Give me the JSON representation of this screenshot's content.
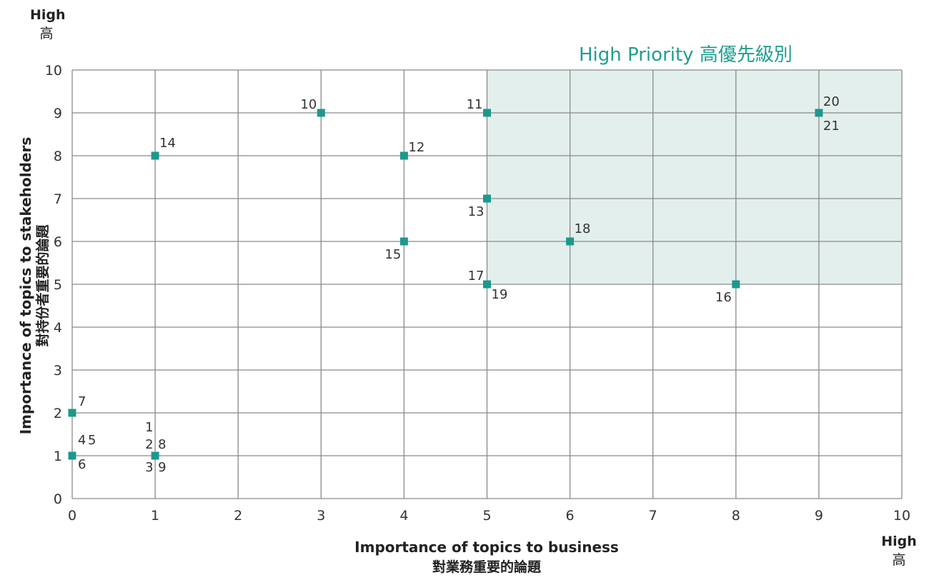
{
  "corner_labels": {
    "y_high_en": "High",
    "y_high_zh": "高",
    "x_high_en": "High",
    "x_high_zh": "高"
  },
  "priority_region_label": "High Priority 高優先級別",
  "colors": {
    "marker": "#1b998b",
    "priority_fill": "#e2efed",
    "grid": "#8a8a8a",
    "priority_text": "#1f9e8f"
  },
  "chart_data": {
    "type": "scatter",
    "xlabel": "Importance of topics to business",
    "xlabel_zh": "對業務重要的論題",
    "ylabel": "Importance of topics to stakeholders",
    "ylabel_zh": "對持份者重要的論題",
    "xlim": [
      0,
      10
    ],
    "ylim": [
      0,
      10
    ],
    "x_ticks": [
      "0",
      "1",
      "2",
      "3",
      "4",
      "5",
      "6",
      "7",
      "8",
      "9",
      "10"
    ],
    "y_ticks": [
      "0",
      "1",
      "2",
      "3",
      "4",
      "5",
      "6",
      "7",
      "8",
      "9",
      "10"
    ],
    "grid": true,
    "highlight_region": {
      "x": [
        5,
        10
      ],
      "y": [
        5,
        10
      ],
      "label": "High Priority 高優先級別"
    },
    "points": [
      {
        "x": 0,
        "y": 1,
        "labels": [
          "4",
          "5",
          "6"
        ]
      },
      {
        "x": 0,
        "y": 2,
        "labels": [
          "7"
        ]
      },
      {
        "x": 1,
        "y": 1,
        "labels": [
          "1",
          "2",
          "8",
          "3",
          "9"
        ]
      },
      {
        "x": 1,
        "y": 8,
        "labels": [
          "14"
        ]
      },
      {
        "x": 3,
        "y": 9,
        "labels": [
          "10"
        ]
      },
      {
        "x": 4,
        "y": 8,
        "labels": [
          "12"
        ]
      },
      {
        "x": 4,
        "y": 6,
        "labels": [
          "15"
        ]
      },
      {
        "x": 5,
        "y": 9,
        "labels": [
          "11"
        ]
      },
      {
        "x": 5,
        "y": 7,
        "labels": [
          "13"
        ]
      },
      {
        "x": 5,
        "y": 5,
        "labels": [
          "17",
          "19"
        ]
      },
      {
        "x": 6,
        "y": 6,
        "labels": [
          "18"
        ]
      },
      {
        "x": 8,
        "y": 5,
        "labels": [
          "16"
        ]
      },
      {
        "x": 9,
        "y": 9,
        "labels": [
          "20",
          "21"
        ]
      }
    ]
  }
}
